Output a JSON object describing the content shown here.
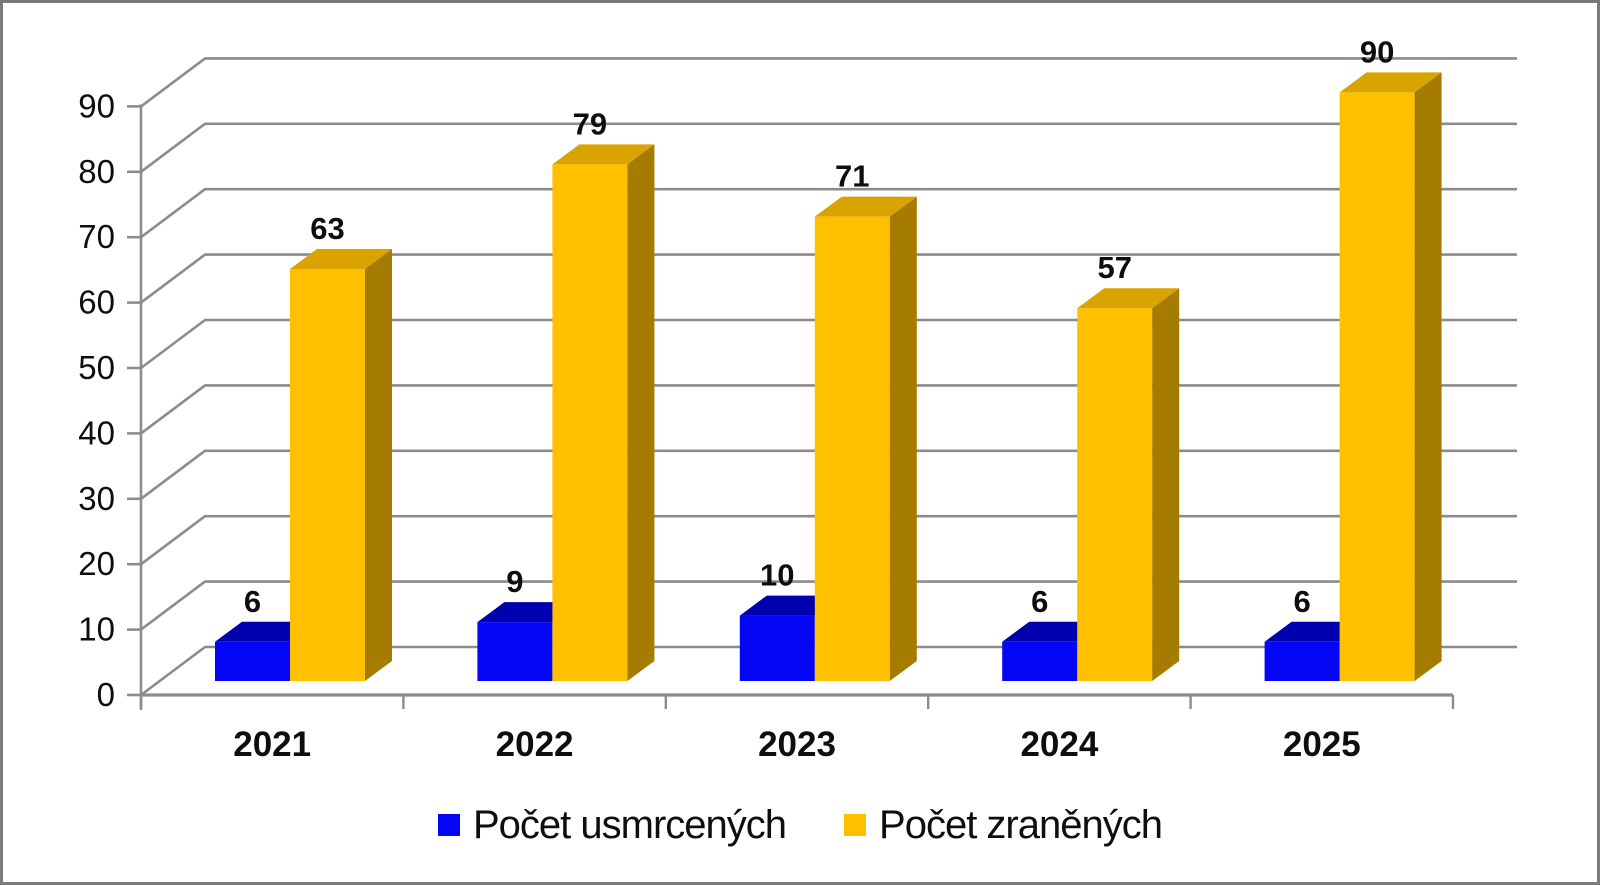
{
  "chart_data": {
    "type": "bar",
    "variant": "3d-clustered-column",
    "title": "",
    "xlabel": "",
    "ylabel": "",
    "categories": [
      "2021",
      "2022",
      "2023",
      "2024",
      "2025"
    ],
    "series": [
      {
        "name": "Počet usmrcených",
        "values": [
          6,
          9,
          10,
          6,
          6
        ],
        "color": "#0505f8",
        "top_color": "#0000ae",
        "side_color": "#000080"
      },
      {
        "name": "Počet zraněných",
        "values": [
          63,
          79,
          71,
          57,
          90
        ],
        "color": "#ffc000",
        "top_color": "#d9a300",
        "side_color": "#a67c00"
      }
    ],
    "ylim": [
      0,
      90
    ],
    "yticks": [
      0,
      10,
      20,
      30,
      40,
      50,
      60,
      70,
      80,
      90
    ],
    "grid": true,
    "gridline_color": "#8c8c8c",
    "text_color": "#0e0e0e",
    "legend_position": "bottom",
    "value_labels": true
  }
}
